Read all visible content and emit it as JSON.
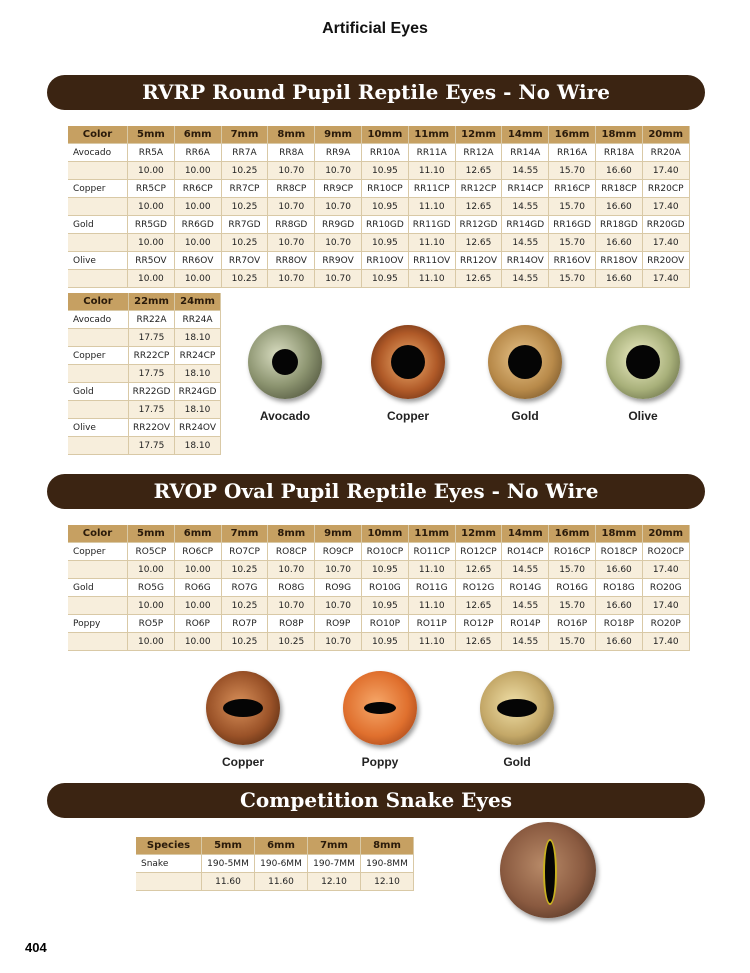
{
  "header": {
    "title": "Artificial Eyes"
  },
  "sections": [
    {
      "title": "RVRP Round Pupil Reptile Eyes - No Wire",
      "tables": [
        {
          "headers": [
            "Color",
            "5mm",
            "6mm",
            "7mm",
            "8mm",
            "9mm",
            "10mm",
            "11mm",
            "12mm",
            "14mm",
            "16mm",
            "18mm",
            "20mm"
          ],
          "rows": [
            {
              "color": "Avocado",
              "codes": [
                "RR5A",
                "RR6A",
                "RR7A",
                "RR8A",
                "RR9A",
                "RR10A",
                "RR11A",
                "RR12A",
                "RR14A",
                "RR16A",
                "RR18A",
                "RR20A"
              ],
              "prices": [
                "10.00",
                "10.00",
                "10.25",
                "10.70",
                "10.70",
                "10.95",
                "11.10",
                "12.65",
                "14.55",
                "15.70",
                "16.60",
                "17.40"
              ]
            },
            {
              "color": "Copper",
              "codes": [
                "RR5CP",
                "RR6CP",
                "RR7CP",
                "RR8CP",
                "RR9CP",
                "RR10CP",
                "RR11CP",
                "RR12CP",
                "RR14CP",
                "RR16CP",
                "RR18CP",
                "RR20CP"
              ],
              "prices": [
                "10.00",
                "10.00",
                "10.25",
                "10.70",
                "10.70",
                "10.95",
                "11.10",
                "12.65",
                "14.55",
                "15.70",
                "16.60",
                "17.40"
              ]
            },
            {
              "color": "Gold",
              "codes": [
                "RR5GD",
                "RR6GD",
                "RR7GD",
                "RR8GD",
                "RR9GD",
                "RR10GD",
                "RR11GD",
                "RR12GD",
                "RR14GD",
                "RR16GD",
                "RR18GD",
                "RR20GD"
              ],
              "prices": [
                "10.00",
                "10.00",
                "10.25",
                "10.70",
                "10.70",
                "10.95",
                "11.10",
                "12.65",
                "14.55",
                "15.70",
                "16.60",
                "17.40"
              ]
            },
            {
              "color": "Olive",
              "codes": [
                "RR5OV",
                "RR6OV",
                "RR7OV",
                "RR8OV",
                "RR9OV",
                "RR10OV",
                "RR11OV",
                "RR12OV",
                "RR14OV",
                "RR16OV",
                "RR18OV",
                "RR20OV"
              ],
              "prices": [
                "10.00",
                "10.00",
                "10.25",
                "10.70",
                "10.70",
                "10.95",
                "11.10",
                "12.65",
                "14.55",
                "15.70",
                "16.60",
                "17.40"
              ]
            }
          ]
        },
        {
          "headers": [
            "Color",
            "22mm",
            "24mm"
          ],
          "rows": [
            {
              "color": "Avocado",
              "codes": [
                "RR22A",
                "RR24A"
              ],
              "prices": [
                "17.75",
                "18.10"
              ]
            },
            {
              "color": "Copper",
              "codes": [
                "RR22CP",
                "RR24CP"
              ],
              "prices": [
                "17.75",
                "18.10"
              ]
            },
            {
              "color": "Gold",
              "codes": [
                "RR22GD",
                "RR24GD"
              ],
              "prices": [
                "17.75",
                "18.10"
              ]
            },
            {
              "color": "Olive",
              "codes": [
                "RR22OV",
                "RR24OV"
              ],
              "prices": [
                "17.75",
                "18.10"
              ]
            }
          ]
        }
      ],
      "eyes": [
        "Avocado",
        "Copper",
        "Gold",
        "Olive"
      ]
    },
    {
      "title": "RVOP Oval Pupil Reptile Eyes - No Wire",
      "tables": [
        {
          "headers": [
            "Color",
            "5mm",
            "6mm",
            "7mm",
            "8mm",
            "9mm",
            "10mm",
            "11mm",
            "12mm",
            "14mm",
            "16mm",
            "18mm",
            "20mm"
          ],
          "rows": [
            {
              "color": "Copper",
              "codes": [
                "RO5CP",
                "RO6CP",
                "RO7CP",
                "RO8CP",
                "RO9CP",
                "RO10CP",
                "RO11CP",
                "RO12CP",
                "RO14CP",
                "RO16CP",
                "RO18CP",
                "RO20CP"
              ],
              "prices": [
                "10.00",
                "10.00",
                "10.25",
                "10.70",
                "10.70",
                "10.95",
                "11.10",
                "12.65",
                "14.55",
                "15.70",
                "16.60",
                "17.40"
              ]
            },
            {
              "color": "Gold",
              "codes": [
                "RO5G",
                "RO6G",
                "RO7G",
                "RO8G",
                "RO9G",
                "RO10G",
                "RO11G",
                "RO12G",
                "RO14G",
                "RO16G",
                "RO18G",
                "RO20G"
              ],
              "prices": [
                "10.00",
                "10.00",
                "10.25",
                "10.70",
                "10.70",
                "10.95",
                "11.10",
                "12.65",
                "14.55",
                "15.70",
                "16.60",
                "17.40"
              ]
            },
            {
              "color": "Poppy",
              "codes": [
                "RO5P",
                "RO6P",
                "RO7P",
                "RO8P",
                "RO9P",
                "RO10P",
                "RO11P",
                "RO12P",
                "RO14P",
                "RO16P",
                "RO18P",
                "RO20P"
              ],
              "prices": [
                "10.00",
                "10.00",
                "10.25",
                "10.25",
                "10.70",
                "10.95",
                "11.10",
                "12.65",
                "14.55",
                "15.70",
                "16.60",
                "17.40"
              ]
            }
          ]
        }
      ],
      "eyes": [
        "Copper",
        "Poppy",
        "Gold"
      ]
    },
    {
      "title": "Competition Snake Eyes",
      "tables": [
        {
          "headers": [
            "Species",
            "5mm",
            "6mm",
            "7mm",
            "8mm"
          ],
          "rows": [
            {
              "color": "Snake",
              "codes": [
                "190-5MM",
                "190-6MM",
                "190-7MM",
                "190-8MM"
              ],
              "prices": [
                "11.60",
                "11.60",
                "12.10",
                "12.10"
              ]
            }
          ]
        }
      ]
    }
  ],
  "page_number": "404"
}
